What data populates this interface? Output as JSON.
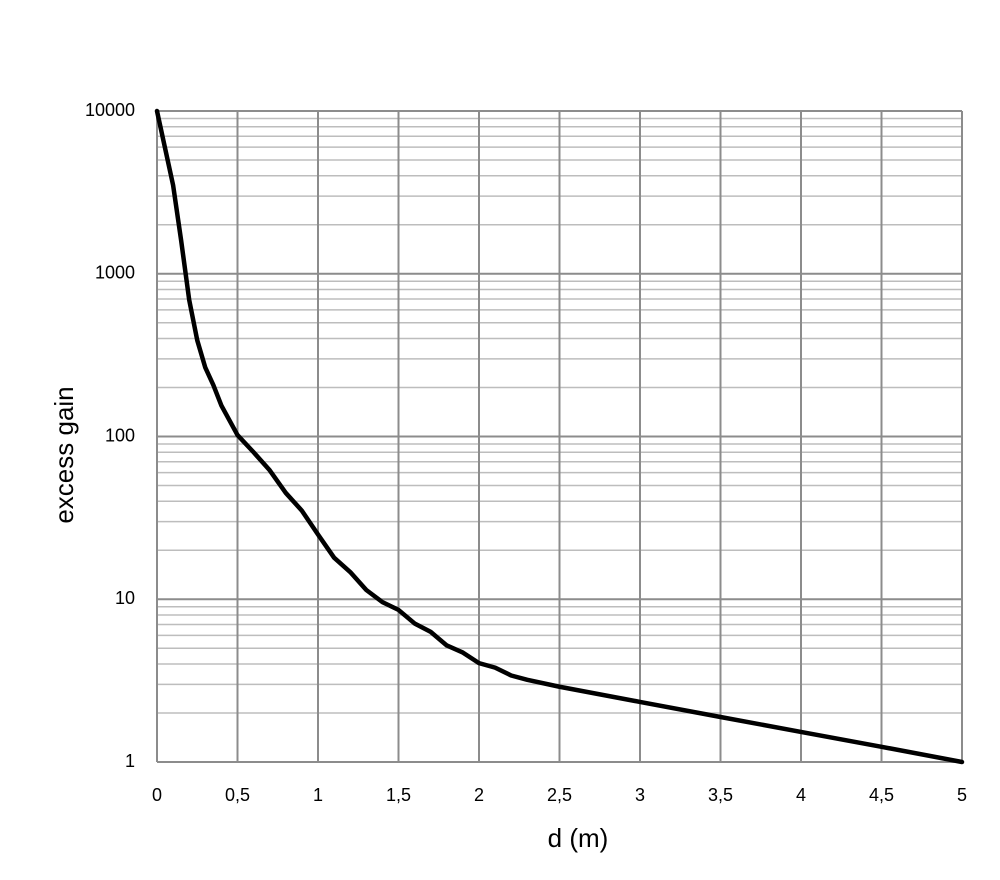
{
  "chart_data": {
    "type": "line",
    "log_y": true,
    "grid": true,
    "minor_grid": true,
    "xlabel": "d (m)",
    "ylabel": "excess gain",
    "x": [
      0,
      0.1,
      0.15,
      0.2,
      0.25,
      0.3,
      0.35,
      0.4,
      0.5,
      0.6,
      0.7,
      0.8,
      0.9,
      1.0,
      1.1,
      1.2,
      1.3,
      1.4,
      1.5,
      1.6,
      1.7,
      1.8,
      1.9,
      2.0,
      2.1,
      2.2,
      2.3,
      2.5,
      3.0,
      3.5,
      4.0,
      4.5,
      5.0
    ],
    "series": [
      {
        "name": "excess gain",
        "color": "#000000",
        "values": [
          10000,
          3500,
          1600,
          690,
          390,
          265,
          207,
          155,
          102,
          80,
          62,
          45,
          35,
          25,
          18,
          14.7,
          11.4,
          9.6,
          8.6,
          7.1,
          6.3,
          5.2,
          4.7,
          4.05,
          3.8,
          3.4,
          3.2,
          2.9,
          2.34,
          1.89,
          1.53,
          1.24,
          1
        ]
      }
    ],
    "xlim": [
      0,
      5
    ],
    "xticks": [
      0,
      {
        "value": 0.5,
        "label": "0,5"
      },
      1,
      {
        "value": 1.5,
        "label": "1,5"
      },
      2,
      {
        "value": 2.5,
        "label": "2,5"
      },
      3,
      {
        "value": 3.5,
        "label": "3,5"
      },
      4,
      {
        "value": 4.5,
        "label": "4,5"
      },
      5
    ],
    "ylim": [
      1,
      10000
    ],
    "yticks": [
      1,
      10,
      100,
      1000,
      10000
    ]
  }
}
